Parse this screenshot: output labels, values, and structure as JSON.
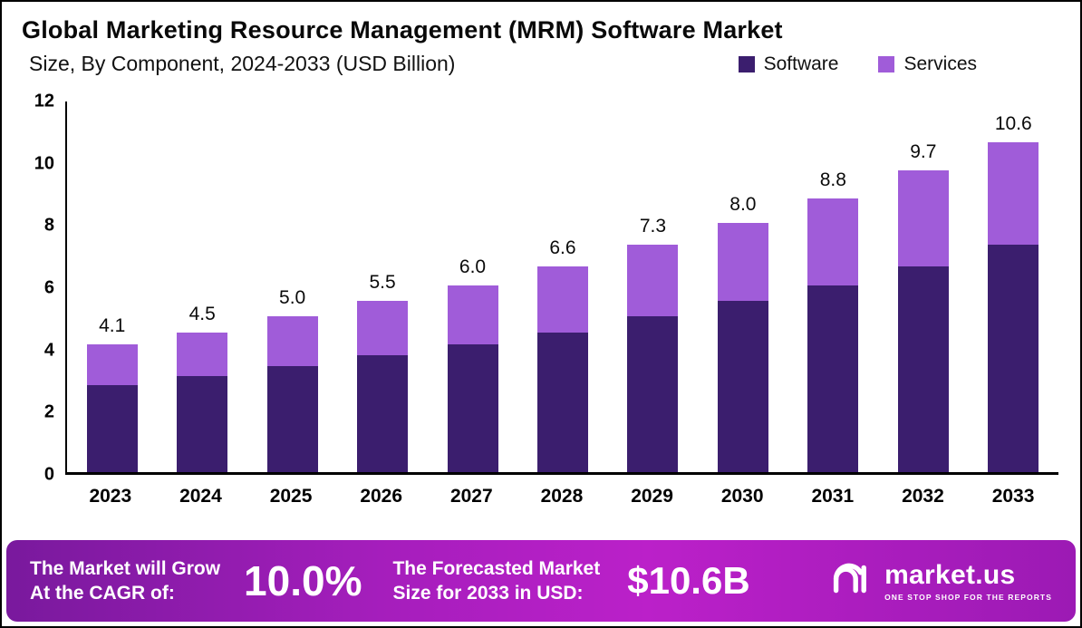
{
  "meta": {
    "title": "Global Marketing Resource Management (MRM) Software Market",
    "subtitle": "Size, By Component, 2024-2033 (USD Billion)"
  },
  "legend": [
    {
      "label": "Software",
      "color": "#3b1e6e"
    },
    {
      "label": "Services",
      "color": "#a05cd9"
    }
  ],
  "chart_data": {
    "type": "bar",
    "stacked": true,
    "title": "Global Marketing Resource Management (MRM) Software Market Size, By Component, 2024-2033 (USD Billion)",
    "categories": [
      "2023",
      "2024",
      "2025",
      "2026",
      "2027",
      "2028",
      "2029",
      "2030",
      "2031",
      "2032",
      "2033"
    ],
    "series": [
      {
        "name": "Software",
        "color": "#3b1e6e",
        "values": [
          2.8,
          3.1,
          3.4,
          3.75,
          4.1,
          4.5,
          5.0,
          5.5,
          6.0,
          6.6,
          7.3
        ]
      },
      {
        "name": "Services",
        "color": "#a05cd9",
        "values": [
          1.3,
          1.4,
          1.6,
          1.75,
          1.9,
          2.1,
          2.3,
          2.5,
          2.8,
          3.1,
          3.3
        ]
      }
    ],
    "totals": [
      4.1,
      4.5,
      5.0,
      5.5,
      6.0,
      6.6,
      7.3,
      8.0,
      8.8,
      9.7,
      10.6
    ],
    "total_labels": [
      "4.1",
      "4.5",
      "5.0",
      "5.5",
      "6.0",
      "6.6",
      "7.3",
      "8.0",
      "8.8",
      "9.7",
      "10.6"
    ],
    "xlabel": "",
    "ylabel": "",
    "ylim": [
      0,
      12
    ],
    "yticks": [
      0,
      2,
      4,
      6,
      8,
      10,
      12
    ],
    "grid": false,
    "legend_position": "top-right"
  },
  "banner": {
    "growth_line1": "The Market will Grow",
    "growth_line2": "At the CAGR of:",
    "cagr_value": "10.0%",
    "forecast_line1": "The Forecasted Market",
    "forecast_line2": "Size for 2033 in USD:",
    "forecast_value": "$10.6B",
    "brand_name": "market.us",
    "brand_tagline": "ONE STOP SHOP FOR THE REPORTS"
  }
}
